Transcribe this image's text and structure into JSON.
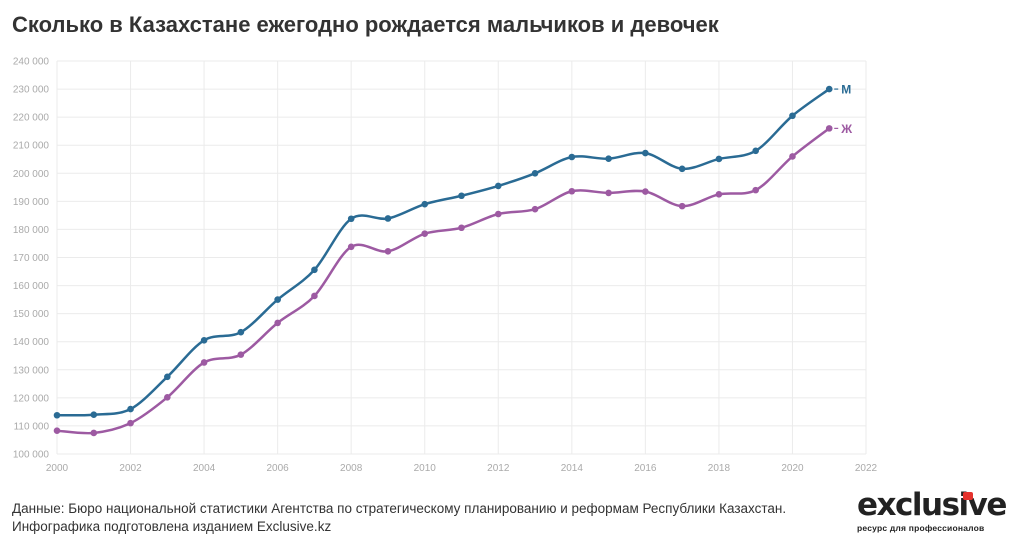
{
  "title": "Сколько в Казахстане ежегодно рождается мальчиков и девочек",
  "chart_data": {
    "type": "line",
    "x": [
      2000,
      2001,
      2002,
      2003,
      2004,
      2005,
      2006,
      2007,
      2008,
      2009,
      2010,
      2011,
      2012,
      2013,
      2014,
      2015,
      2016,
      2017,
      2018,
      2019,
      2020,
      2021
    ],
    "series": [
      {
        "name": "М",
        "color": "#2a6b94",
        "values": [
          113800,
          114000,
          116000,
          127500,
          140500,
          143400,
          155000,
          165600,
          183800,
          183900,
          189000,
          192000,
          195500,
          200000,
          205800,
          205200,
          207200,
          201600,
          205100,
          208000,
          220500,
          230000
        ]
      },
      {
        "name": "Ж",
        "color": "#9d5aa2",
        "values": [
          108300,
          107500,
          111000,
          120200,
          132600,
          135400,
          146700,
          156300,
          173800,
          172200,
          178500,
          180600,
          185500,
          187200,
          193600,
          193000,
          193500,
          188300,
          192500,
          194000,
          206000,
          216000
        ]
      }
    ],
    "ylim": [
      100000,
      240000
    ],
    "yticks": [
      100000,
      110000,
      120000,
      130000,
      140000,
      150000,
      160000,
      170000,
      180000,
      190000,
      200000,
      210000,
      220000,
      230000,
      240000
    ],
    "ytick_labels": [
      "100 000",
      "110 000",
      "120 000",
      "130 000",
      "140 000",
      "150 000",
      "160 000",
      "170 000",
      "180 000",
      "190 000",
      "200 000",
      "210 000",
      "220 000",
      "230 000",
      "240 000"
    ],
    "xlim": [
      2000,
      2022
    ],
    "xticks": [
      2000,
      2002,
      2004,
      2006,
      2008,
      2010,
      2012,
      2014,
      2016,
      2018,
      2020,
      2022
    ],
    "xtick_labels": [
      "2000",
      "2002",
      "2004",
      "2006",
      "2008",
      "2010",
      "2012",
      "2014",
      "2016",
      "2018",
      "2020",
      "2022"
    ],
    "grid": true,
    "legend": "end-of-line labels"
  },
  "source_lines": [
    "Данные: Бюро национальной статистики Агентства по стратегическому планированию и реформам Республики Казахстан.",
    "Инфографика подготовлена изданием Exclusive.kz"
  ],
  "brand": {
    "name": "exclusive",
    "tagline": "ресурс для профессионалов",
    "accent_color": "#e5322d"
  }
}
